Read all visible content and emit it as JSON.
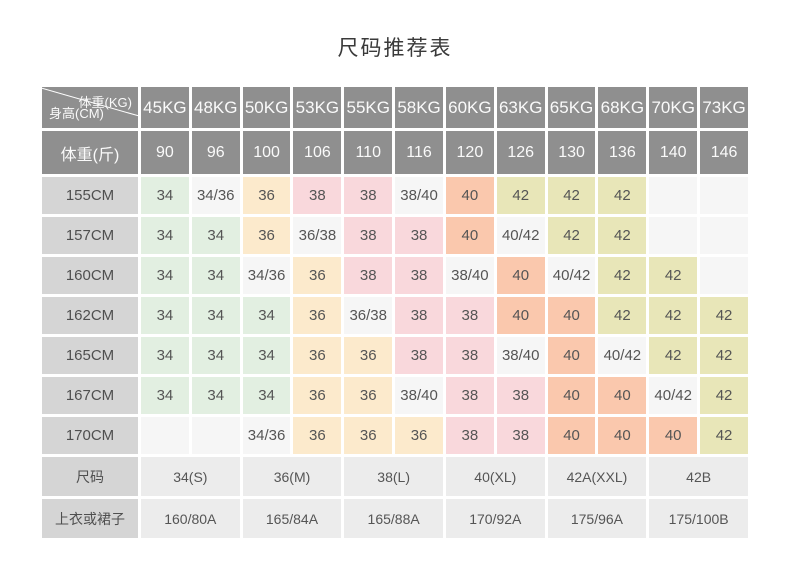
{
  "title": "尺码推荐表",
  "colors": {
    "header_bg": "#8f8f8f",
    "header_text": "#fafafa",
    "row_label_bg": "#d5d5d5",
    "bottom_bg": "#ececec",
    "text": "#555555",
    "green": "#e2efe1",
    "neutral": "#f6f6f6",
    "orange": "#fceacc",
    "pink": "#f9d8dc",
    "salmon": "#fac8ad",
    "khaki": "#e8e6b8"
  },
  "header": {
    "corner_top": "体重(KG)",
    "corner_bottom": "身高(CM)",
    "kg_columns": [
      "45KG",
      "48KG",
      "50KG",
      "53KG",
      "55KG",
      "58KG",
      "60KG",
      "63KG",
      "65KG",
      "68KG",
      "70KG",
      "73KG"
    ],
    "jin_label": "体重(斤)",
    "jin_values": [
      "90",
      "96",
      "100",
      "106",
      "110",
      "116",
      "120",
      "126",
      "130",
      "136",
      "140",
      "146"
    ]
  },
  "body_rows": [
    {
      "label": "155CM",
      "cells": [
        {
          "v": "34",
          "c": "g"
        },
        {
          "v": "34/36",
          "c": "n"
        },
        {
          "v": "36",
          "c": "o"
        },
        {
          "v": "38",
          "c": "p"
        },
        {
          "v": "38",
          "c": "p"
        },
        {
          "v": "38/40",
          "c": "n"
        },
        {
          "v": "40",
          "c": "s"
        },
        {
          "v": "42",
          "c": "k"
        },
        {
          "v": "42",
          "c": "k"
        },
        {
          "v": "42",
          "c": "k"
        },
        {
          "v": "",
          "c": "n"
        },
        {
          "v": "",
          "c": "n"
        }
      ]
    },
    {
      "label": "157CM",
      "cells": [
        {
          "v": "34",
          "c": "g"
        },
        {
          "v": "34",
          "c": "g"
        },
        {
          "v": "36",
          "c": "o"
        },
        {
          "v": "36/38",
          "c": "n"
        },
        {
          "v": "38",
          "c": "p"
        },
        {
          "v": "38",
          "c": "p"
        },
        {
          "v": "40",
          "c": "s"
        },
        {
          "v": "40/42",
          "c": "n"
        },
        {
          "v": "42",
          "c": "k"
        },
        {
          "v": "42",
          "c": "k"
        },
        {
          "v": "",
          "c": "n"
        },
        {
          "v": "",
          "c": "n"
        }
      ]
    },
    {
      "label": "160CM",
      "cells": [
        {
          "v": "34",
          "c": "g"
        },
        {
          "v": "34",
          "c": "g"
        },
        {
          "v": "34/36",
          "c": "n"
        },
        {
          "v": "36",
          "c": "o"
        },
        {
          "v": "38",
          "c": "p"
        },
        {
          "v": "38",
          "c": "p"
        },
        {
          "v": "38/40",
          "c": "n"
        },
        {
          "v": "40",
          "c": "s"
        },
        {
          "v": "40/42",
          "c": "n"
        },
        {
          "v": "42",
          "c": "k"
        },
        {
          "v": "42",
          "c": "k"
        },
        {
          "v": "",
          "c": "n"
        }
      ]
    },
    {
      "label": "162CM",
      "cells": [
        {
          "v": "34",
          "c": "g"
        },
        {
          "v": "34",
          "c": "g"
        },
        {
          "v": "34",
          "c": "g"
        },
        {
          "v": "36",
          "c": "o"
        },
        {
          "v": "36/38",
          "c": "n"
        },
        {
          "v": "38",
          "c": "p"
        },
        {
          "v": "38",
          "c": "p"
        },
        {
          "v": "40",
          "c": "s"
        },
        {
          "v": "40",
          "c": "s"
        },
        {
          "v": "42",
          "c": "k"
        },
        {
          "v": "42",
          "c": "k"
        },
        {
          "v": "42",
          "c": "k"
        }
      ]
    },
    {
      "label": "165CM",
      "cells": [
        {
          "v": "34",
          "c": "g"
        },
        {
          "v": "34",
          "c": "g"
        },
        {
          "v": "34",
          "c": "g"
        },
        {
          "v": "36",
          "c": "o"
        },
        {
          "v": "36",
          "c": "o"
        },
        {
          "v": "38",
          "c": "p"
        },
        {
          "v": "38",
          "c": "p"
        },
        {
          "v": "38/40",
          "c": "n"
        },
        {
          "v": "40",
          "c": "s"
        },
        {
          "v": "40/42",
          "c": "n"
        },
        {
          "v": "42",
          "c": "k"
        },
        {
          "v": "42",
          "c": "k"
        }
      ]
    },
    {
      "label": "167CM",
      "cells": [
        {
          "v": "34",
          "c": "g"
        },
        {
          "v": "34",
          "c": "g"
        },
        {
          "v": "34",
          "c": "g"
        },
        {
          "v": "36",
          "c": "o"
        },
        {
          "v": "36",
          "c": "o"
        },
        {
          "v": "38/40",
          "c": "n"
        },
        {
          "v": "38",
          "c": "p"
        },
        {
          "v": "38",
          "c": "p"
        },
        {
          "v": "40",
          "c": "s"
        },
        {
          "v": "40",
          "c": "s"
        },
        {
          "v": "40/42",
          "c": "n"
        },
        {
          "v": "42",
          "c": "k"
        }
      ]
    },
    {
      "label": "170CM",
      "cells": [
        {
          "v": "",
          "c": "n"
        },
        {
          "v": "",
          "c": "n"
        },
        {
          "v": "34/36",
          "c": "n"
        },
        {
          "v": "36",
          "c": "o"
        },
        {
          "v": "36",
          "c": "o"
        },
        {
          "v": "36",
          "c": "o"
        },
        {
          "v": "38",
          "c": "p"
        },
        {
          "v": "38",
          "c": "p"
        },
        {
          "v": "40",
          "c": "s"
        },
        {
          "v": "40",
          "c": "s"
        },
        {
          "v": "40",
          "c": "s"
        },
        {
          "v": "42",
          "c": "k"
        }
      ]
    }
  ],
  "size_row": {
    "label": "尺码",
    "values": [
      "34(S)",
      "36(M)",
      "38(L)",
      "40(XL)",
      "42A(XXL)",
      "42B"
    ]
  },
  "garment_row": {
    "label": "上衣或裙子",
    "values": [
      "160/80A",
      "165/84A",
      "165/88A",
      "170/92A",
      "175/96A",
      "175/100B"
    ]
  }
}
